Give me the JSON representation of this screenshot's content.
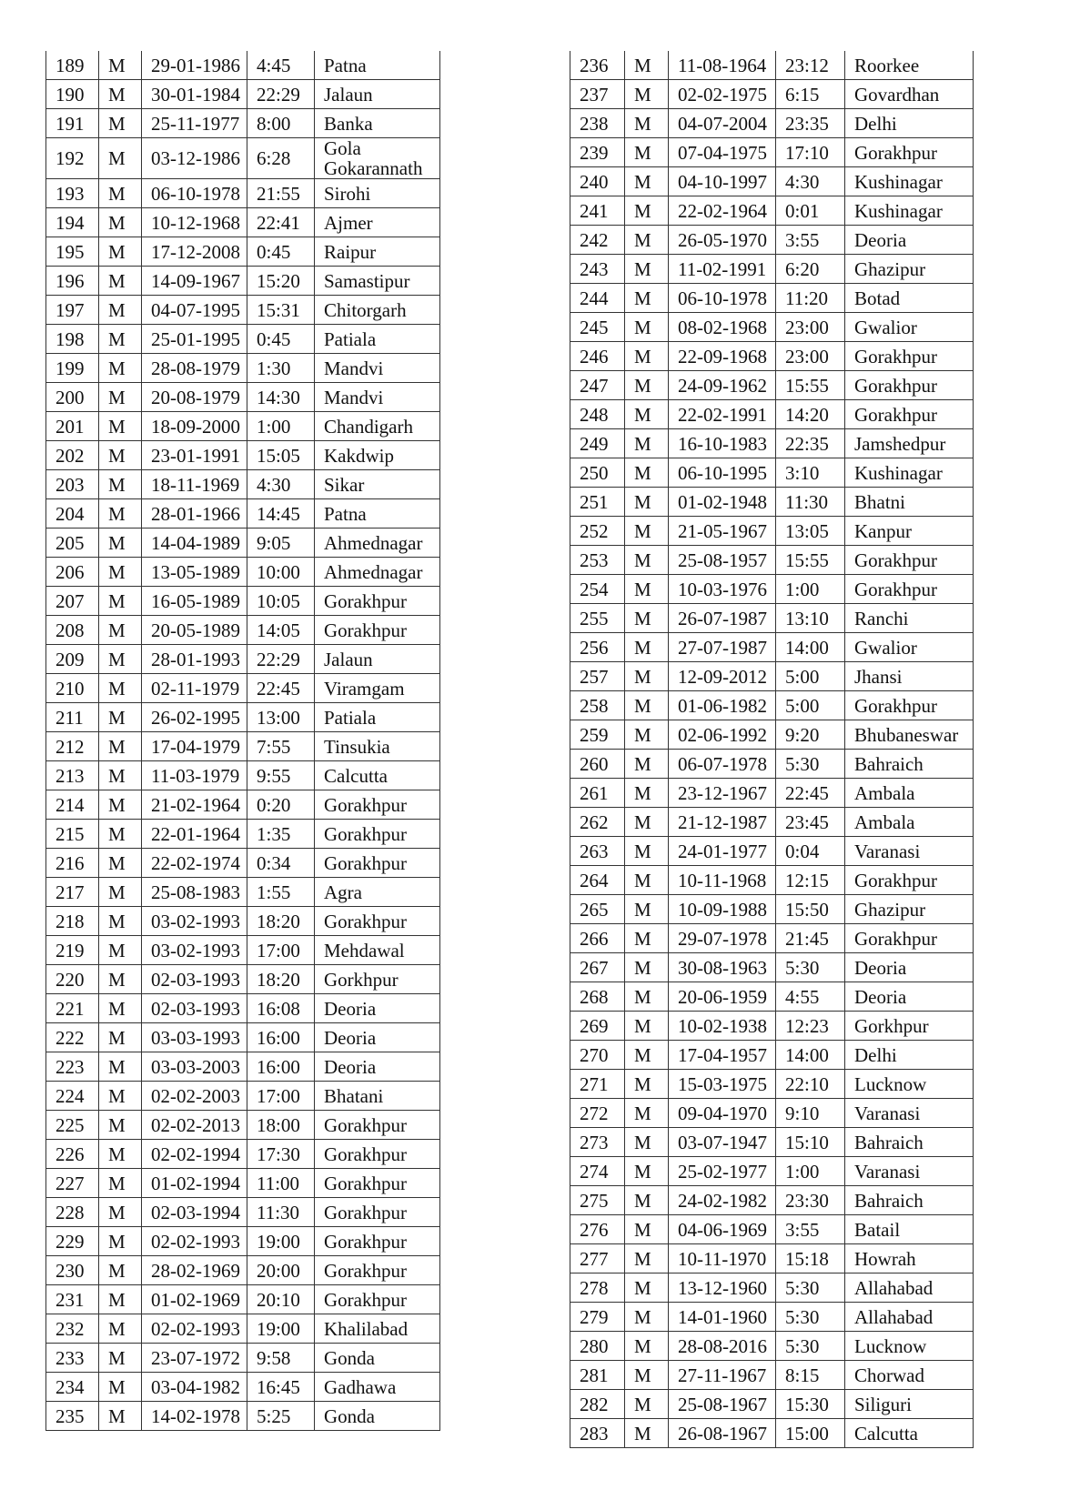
{
  "left_table": [
    [
      "189",
      "M",
      "29-01-1986",
      "4:45",
      "Patna"
    ],
    [
      "190",
      "M",
      "30-01-1984",
      "22:29",
      "Jalaun"
    ],
    [
      "191",
      "M",
      "25-11-1977",
      "8:00",
      "Banka"
    ],
    [
      "192",
      "M",
      "03-12-1986",
      "6:28",
      "Gola Gokarannath"
    ],
    [
      "193",
      "M",
      "06-10-1978",
      "21:55",
      "Sirohi"
    ],
    [
      "194",
      "M",
      "10-12-1968",
      "22:41",
      "Ajmer"
    ],
    [
      "195",
      "M",
      "17-12-2008",
      "0:45",
      "Raipur"
    ],
    [
      "196",
      "M",
      "14-09-1967",
      "15:20",
      "Samastipur"
    ],
    [
      "197",
      "M",
      "04-07-1995",
      "15:31",
      "Chitorgarh"
    ],
    [
      "198",
      "M",
      "25-01-1995",
      "0:45",
      "Patiala"
    ],
    [
      "199",
      "M",
      "28-08-1979",
      "1:30",
      "Mandvi"
    ],
    [
      "200",
      "M",
      "20-08-1979",
      "14:30",
      "Mandvi"
    ],
    [
      "201",
      "M",
      "18-09-2000",
      "1:00",
      "Chandigarh"
    ],
    [
      "202",
      "M",
      "23-01-1991",
      "15:05",
      "Kakdwip"
    ],
    [
      "203",
      "M",
      "18-11-1969",
      "4:30",
      "Sikar"
    ],
    [
      "204",
      "M",
      "28-01-1966",
      "14:45",
      "Patna"
    ],
    [
      "205",
      "M",
      "14-04-1989",
      "9:05",
      "Ahmednagar"
    ],
    [
      "206",
      "M",
      "13-05-1989",
      "10:00",
      "Ahmednagar"
    ],
    [
      "207",
      "M",
      "16-05-1989",
      "10:05",
      "Gorakhpur"
    ],
    [
      "208",
      "M",
      "20-05-1989",
      "14:05",
      "Gorakhpur"
    ],
    [
      "209",
      "M",
      "28-01-1993",
      "22:29",
      "Jalaun"
    ],
    [
      "210",
      "M",
      "02-11-1979",
      "22:45",
      "Viramgam"
    ],
    [
      "211",
      "M",
      "26-02-1995",
      "13:00",
      "Patiala"
    ],
    [
      "212",
      "M",
      "17-04-1979",
      "7:55",
      "Tinsukia"
    ],
    [
      "213",
      "M",
      "11-03-1979",
      "9:55",
      "Calcutta"
    ],
    [
      "214",
      "M",
      "21-02-1964",
      "0:20",
      "Gorakhpur"
    ],
    [
      "215",
      "M",
      "22-01-1964",
      "1:35",
      "Gorakhpur"
    ],
    [
      "216",
      "M",
      "22-02-1974",
      "0:34",
      "Gorakhpur"
    ],
    [
      "217",
      "M",
      "25-08-1983",
      "1:55",
      "Agra"
    ],
    [
      "218",
      "M",
      "03-02-1993",
      "18:20",
      "Gorakhpur"
    ],
    [
      "219",
      "M",
      "03-02-1993",
      "17:00",
      "Mehdawal"
    ],
    [
      "220",
      "M",
      "02-03-1993",
      "18:20",
      "Gorkhpur"
    ],
    [
      "221",
      "M",
      "02-03-1993",
      "16:08",
      "Deoria"
    ],
    [
      "222",
      "M",
      "03-03-1993",
      "16:00",
      "Deoria"
    ],
    [
      "223",
      "M",
      "03-03-2003",
      "16:00",
      "Deoria"
    ],
    [
      "224",
      "M",
      "02-02-2003",
      "17:00",
      "Bhatani"
    ],
    [
      "225",
      "M",
      "02-02-2013",
      "18:00",
      "Gorakhpur"
    ],
    [
      "226",
      "M",
      "02-02-1994",
      "17:30",
      "Gorakhpur"
    ],
    [
      "227",
      "M",
      "01-02-1994",
      "11:00",
      "Gorakhpur"
    ],
    [
      "228",
      "M",
      "02-03-1994",
      "11:30",
      "Gorakhpur"
    ],
    [
      "229",
      "M",
      "02-02-1993",
      "19:00",
      "Gorakhpur"
    ],
    [
      "230",
      "M",
      "28-02-1969",
      "20:00",
      "Gorakhpur"
    ],
    [
      "231",
      "M",
      "01-02-1969",
      "20:10",
      "Gorakhpur"
    ],
    [
      "232",
      "M",
      "02-02-1993",
      "19:00",
      "Khalilabad"
    ],
    [
      "233",
      "M",
      "23-07-1972",
      "9:58",
      "Gonda"
    ],
    [
      "234",
      "M",
      "03-04-1982",
      "16:45",
      "Gadhawa"
    ],
    [
      "235",
      "M",
      "14-02-1978",
      "5:25",
      "Gonda"
    ]
  ],
  "right_table": [
    [
      "236",
      "M",
      "11-08-1964",
      "23:12",
      "Roorkee"
    ],
    [
      "237",
      "M",
      "02-02-1975",
      "6:15",
      "Govardhan"
    ],
    [
      "238",
      "M",
      "04-07-2004",
      "23:35",
      "Delhi"
    ],
    [
      "239",
      "M",
      "07-04-1975",
      "17:10",
      "Gorakhpur"
    ],
    [
      "240",
      "M",
      "04-10-1997",
      "4:30",
      "Kushinagar"
    ],
    [
      "241",
      "M",
      "22-02-1964",
      "0:01",
      "Kushinagar"
    ],
    [
      "242",
      "M",
      "26-05-1970",
      "3:55",
      "Deoria"
    ],
    [
      "243",
      "M",
      "11-02-1991",
      "6:20",
      "Ghazipur"
    ],
    [
      "244",
      "M",
      "06-10-1978",
      "11:20",
      "Botad"
    ],
    [
      "245",
      "M",
      "08-02-1968",
      "23:00",
      "Gwalior"
    ],
    [
      "246",
      "M",
      "22-09-1968",
      "23:00",
      "Gorakhpur"
    ],
    [
      "247",
      "M",
      "24-09-1962",
      "15:55",
      "Gorakhpur"
    ],
    [
      "248",
      "M",
      "22-02-1991",
      "14:20",
      "Gorakhpur"
    ],
    [
      "249",
      "M",
      "16-10-1983",
      "22:35",
      "Jamshedpur"
    ],
    [
      "250",
      "M",
      "06-10-1995",
      "3:10",
      "Kushinagar"
    ],
    [
      "251",
      "M",
      "01-02-1948",
      "11:30",
      "Bhatni"
    ],
    [
      "252",
      "M",
      "21-05-1967",
      "13:05",
      "Kanpur"
    ],
    [
      "253",
      "M",
      "25-08-1957",
      "15:55",
      "Gorakhpur"
    ],
    [
      "254",
      "M",
      "10-03-1976",
      "1:00",
      "Gorakhpur"
    ],
    [
      "255",
      "M",
      "26-07-1987",
      "13:10",
      "Ranchi"
    ],
    [
      "256",
      "M",
      "27-07-1987",
      "14:00",
      "Gwalior"
    ],
    [
      "257",
      "M",
      "12-09-2012",
      "5:00",
      "Jhansi"
    ],
    [
      "258",
      "M",
      "01-06-1982",
      "5:00",
      "Gorakhpur"
    ],
    [
      "259",
      "M",
      "02-06-1992",
      "9:20",
      "Bhubaneswar"
    ],
    [
      "260",
      "M",
      "06-07-1978",
      "5:30",
      "Bahraich"
    ],
    [
      "261",
      "M",
      "23-12-1967",
      "22:45",
      "Ambala"
    ],
    [
      "262",
      "M",
      "21-12-1987",
      "23:45",
      "Ambala"
    ],
    [
      "263",
      "M",
      "24-01-1977",
      "0:04",
      "Varanasi"
    ],
    [
      "264",
      "M",
      "10-11-1968",
      "12:15",
      "Gorakhpur"
    ],
    [
      "265",
      "M",
      "10-09-1988",
      "15:50",
      "Ghazipur"
    ],
    [
      "266",
      "M",
      "29-07-1978",
      "21:45",
      "Gorakhpur"
    ],
    [
      "267",
      "M",
      "30-08-1963",
      "5:30",
      "Deoria"
    ],
    [
      "268",
      "M",
      "20-06-1959",
      "4:55",
      "Deoria"
    ],
    [
      "269",
      "M",
      "10-02-1938",
      "12:23",
      "Gorkhpur"
    ],
    [
      "270",
      "M",
      "17-04-1957",
      "14:00",
      "Delhi"
    ],
    [
      "271",
      "M",
      "15-03-1975",
      "22:10",
      "Lucknow"
    ],
    [
      "272",
      "M",
      "09-04-1970",
      "9:10",
      "Varanasi"
    ],
    [
      "273",
      "M",
      "03-07-1947",
      "15:10",
      "Bahraich"
    ],
    [
      "274",
      "M",
      "25-02-1977",
      "1:00",
      "Varanasi"
    ],
    [
      "275",
      "M",
      "24-02-1982",
      "23:30",
      "Bahraich"
    ],
    [
      "276",
      "M",
      "04-06-1969",
      "3:55",
      "Batail"
    ],
    [
      "277",
      "M",
      "10-11-1970",
      "15:18",
      "Howrah"
    ],
    [
      "278",
      "M",
      "13-12-1960",
      "5:30",
      "Allahabad"
    ],
    [
      "279",
      "M",
      "14-01-1960",
      "5:30",
      "Allahabad"
    ],
    [
      "280",
      "M",
      "28-08-2016",
      "5:30",
      "Lucknow"
    ],
    [
      "281",
      "M",
      "27-11-1967",
      "8:15",
      "Chorwad"
    ],
    [
      "282",
      "M",
      "25-08-1967",
      "15:30",
      "Siliguri"
    ],
    [
      "283",
      "M",
      "26-08-1967",
      "15:00",
      "Calcutta"
    ]
  ]
}
